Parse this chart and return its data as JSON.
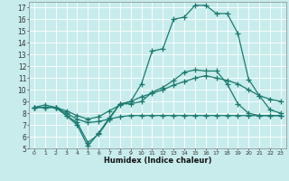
{
  "xlabel": "Humidex (Indice chaleur)",
  "xlim": [
    -0.5,
    23.5
  ],
  "ylim": [
    5,
    17.5
  ],
  "yticks": [
    5,
    6,
    7,
    8,
    9,
    10,
    11,
    12,
    13,
    14,
    15,
    16,
    17
  ],
  "xticks": [
    0,
    1,
    2,
    3,
    4,
    5,
    6,
    7,
    8,
    9,
    10,
    11,
    12,
    13,
    14,
    15,
    16,
    17,
    18,
    19,
    20,
    21,
    22,
    23
  ],
  "bg_color": "#c8ecec",
  "line_color": "#1a7a6e",
  "line_width": 0.9,
  "marker": "+",
  "marker_size": 4,
  "series": [
    [
      8.5,
      8.7,
      8.5,
      7.8,
      7.0,
      5.2,
      6.3,
      7.6,
      8.8,
      9.0,
      10.5,
      13.3,
      13.5,
      16.0,
      16.2,
      17.2,
      17.2,
      16.5,
      16.5,
      14.8,
      10.9,
      9.5,
      8.3,
      8.0
    ],
    [
      8.5,
      8.5,
      8.5,
      7.8,
      7.2,
      5.5,
      6.2,
      7.5,
      8.8,
      8.8,
      9.0,
      9.8,
      10.2,
      10.8,
      11.5,
      11.7,
      11.6,
      11.6,
      10.5,
      8.8,
      8.0,
      7.8,
      7.8,
      7.8
    ],
    [
      8.5,
      8.5,
      8.5,
      8.2,
      7.8,
      7.5,
      7.7,
      8.2,
      8.7,
      9.0,
      9.4,
      9.7,
      10.0,
      10.4,
      10.7,
      11.0,
      11.2,
      11.0,
      10.8,
      10.5,
      10.0,
      9.5,
      9.2,
      9.0
    ],
    [
      8.5,
      8.5,
      8.5,
      8.0,
      7.5,
      7.2,
      7.3,
      7.5,
      7.7,
      7.8,
      7.8,
      7.8,
      7.8,
      7.8,
      7.8,
      7.8,
      7.8,
      7.8,
      7.8,
      7.8,
      7.8,
      7.8,
      7.8,
      7.8
    ]
  ]
}
